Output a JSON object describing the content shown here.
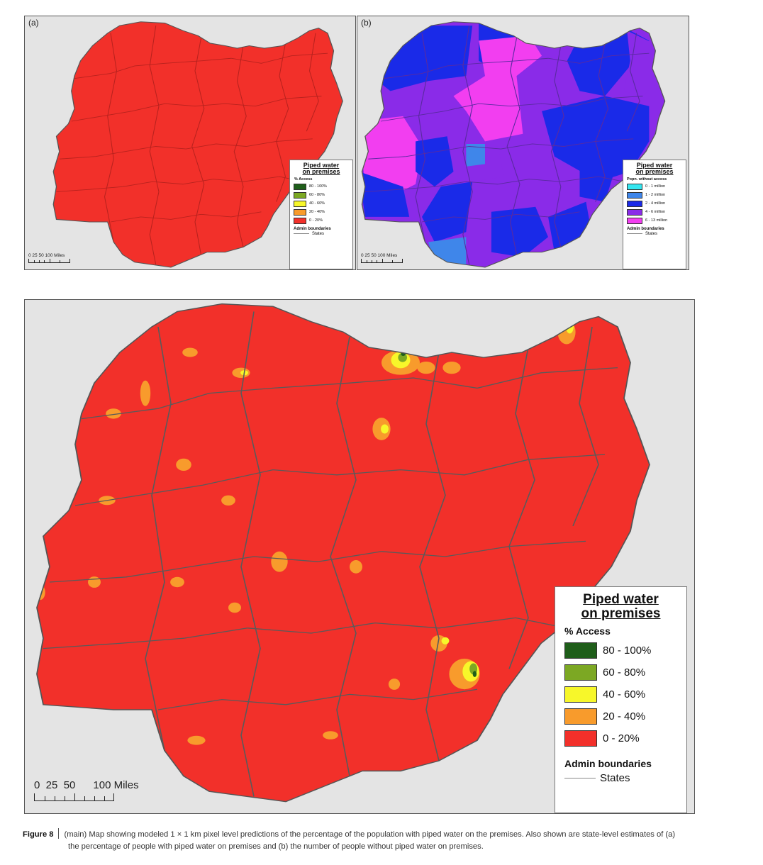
{
  "panel_a": {
    "label": "(a)",
    "legend": {
      "title_line1": "Piped water",
      "title_line2": "on premises",
      "subtitle": "% Access",
      "classes": [
        {
          "label": "80 - 100%",
          "color": "#1f5e1a"
        },
        {
          "label": "60 - 80%",
          "color": "#7ca823"
        },
        {
          "label": "40 - 60%",
          "color": "#f7f72a"
        },
        {
          "label": "20 - 40%",
          "color": "#f89b2c"
        },
        {
          "label": "0 - 20%",
          "color": "#f2302a"
        }
      ],
      "admin_title": "Admin boundaries",
      "states_label": "States"
    },
    "scale": {
      "numbers": "0  25  50      100 Miles"
    }
  },
  "panel_b": {
    "label": "(b)",
    "legend": {
      "title_line1": "Piped water",
      "title_line2": "on premises",
      "subtitle": "Popn. without access",
      "classes": [
        {
          "label": "0 - 1 million",
          "color": "#35e6f0"
        },
        {
          "label": "1 - 2 million",
          "color": "#3f86ea"
        },
        {
          "label": "2 - 4 million",
          "color": "#1a2ae8"
        },
        {
          "label": "4 - 6 million",
          "color": "#8a2be8"
        },
        {
          "label": "6 - 13 million",
          "color": "#f23ef0"
        }
      ],
      "admin_title": "Admin boundaries",
      "states_label": "States"
    },
    "scale": {
      "numbers": "0  25  50      100 Miles"
    }
  },
  "main": {
    "legend": {
      "title_line1": "Piped water",
      "title_line2": "on premises",
      "subtitle": "% Access",
      "classes": [
        {
          "label": "80 - 100%",
          "color": "#1f5e1a"
        },
        {
          "label": "60 - 80%",
          "color": "#7ca823"
        },
        {
          "label": "40 - 60%",
          "color": "#f7f72a"
        },
        {
          "label": "20 - 40%",
          "color": "#f89b2c"
        },
        {
          "label": "0 - 20%",
          "color": "#f2302a"
        }
      ],
      "admin_title": "Admin boundaries",
      "states_label": "States"
    },
    "scale": {
      "numbers": "0  25  50      100 Miles"
    }
  },
  "caption": {
    "figure": "Figure 8",
    "text_line1": "(main) Map showing modeled 1 × 1 km pixel level predictions of the percentage of the population with piped water on the premises. Also shown are state-level estimates of (a)",
    "text_line2": "the percentage of people with piped water on premises and (b) the number of people without piped water on premises."
  },
  "colors": {
    "map_red": "#f2302a",
    "boundary": "#5a5a5a",
    "map_background": "#e4e4e4"
  }
}
